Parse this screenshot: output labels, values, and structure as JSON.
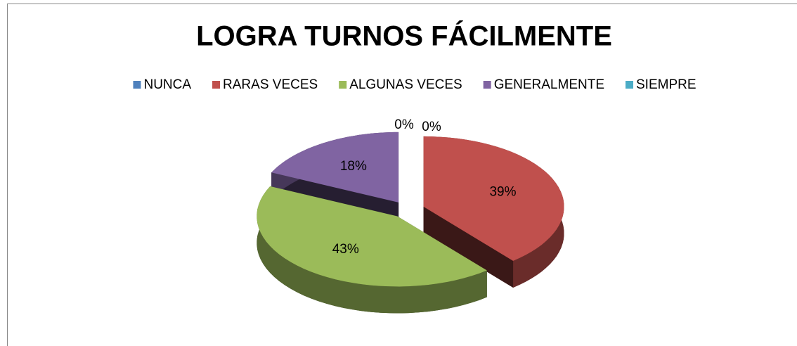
{
  "chart_data": {
    "type": "pie3d",
    "title": "LOGRA TURNOS FÁCILMENTE",
    "categories": [
      "NUNCA",
      "RARAS VECES",
      "ALGUNAS VECES",
      "GENERALMENTE",
      "SIEMPRE"
    ],
    "values": [
      0,
      39,
      43,
      18,
      0
    ],
    "value_labels": [
      "0%",
      "39%",
      "43%",
      "18%",
      "0%"
    ],
    "colors": [
      "#4f81bd",
      "#c0504d",
      "#9bbb59",
      "#8064a2",
      "#4bacc6"
    ],
    "legend": "top"
  }
}
